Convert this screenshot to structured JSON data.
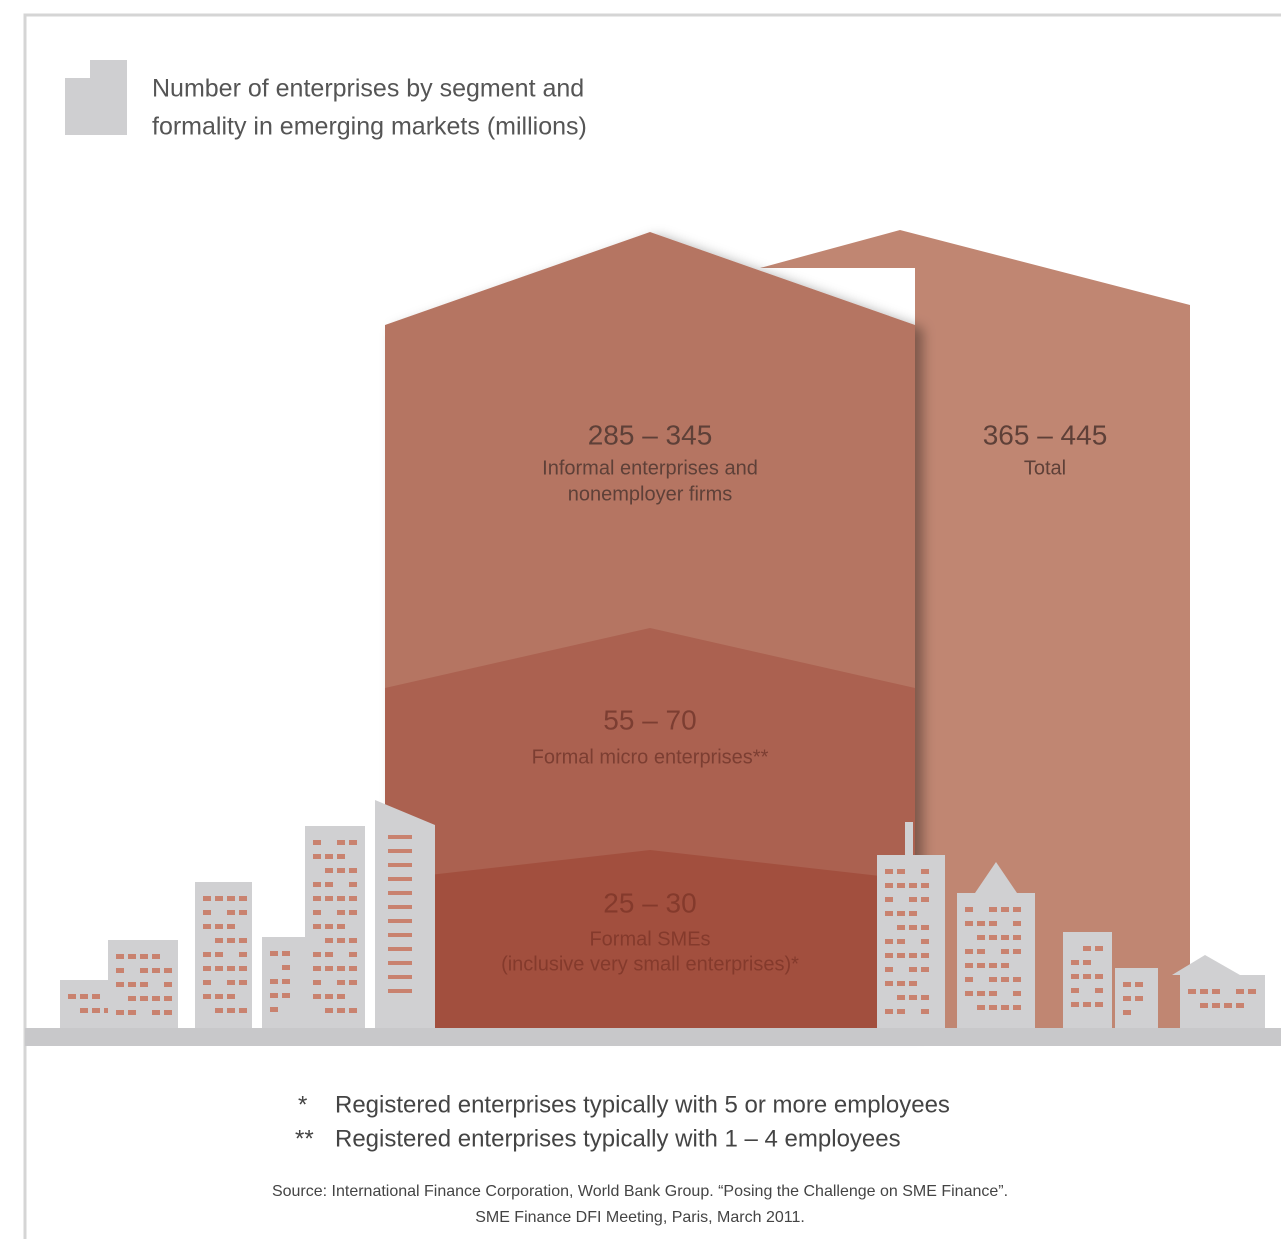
{
  "title": [
    "Number of enterprises by segment and",
    "formality in emerging markets (millions)"
  ],
  "segments": [
    {
      "range": "285 – 345",
      "label": [
        "Informal enterprises and",
        "nonemployer firms"
      ]
    },
    {
      "range": "55 – 70",
      "label": [
        "Formal micro enterprises**"
      ]
    },
    {
      "range": "25 – 30",
      "label": [
        "Formal SMEs",
        "(inclusive very small enterprises)*"
      ]
    }
  ],
  "total": {
    "range": "365 – 445",
    "label": "Total"
  },
  "footnotes": [
    {
      "mark": "*",
      "text": "Registered enterprises typically with 5 or more employees"
    },
    {
      "mark": "**",
      "text": "Registered enterprises typically with 1 – 4 employees"
    }
  ],
  "source": [
    "Source: International Finance Corporation, World Bank Group. “Posing the Challenge on SME Finance”.",
    "SME Finance DFI Meeting, Paris, March 2011."
  ]
}
